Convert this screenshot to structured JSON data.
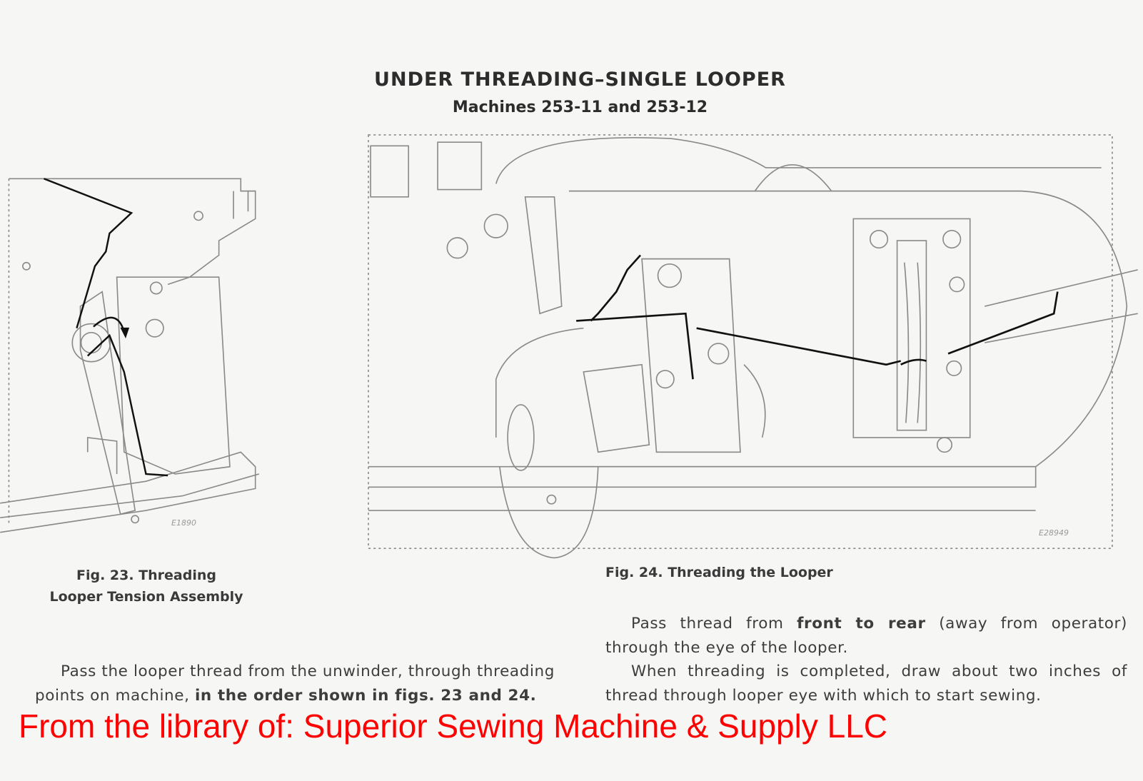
{
  "header": {
    "title": "UNDER THREADING–SINGLE LOOPER",
    "subtitle": "Machines 253-11 and 253-12"
  },
  "figures": [
    {
      "caption": [
        "Fig. 23. Threading",
        "Looper Tension Assembly"
      ],
      "code": "E1890"
    },
    {
      "caption": [
        "Fig. 24. Threading the Looper"
      ],
      "code": "E28949"
    }
  ],
  "instructions": {
    "left": [
      "Pass the looper thread from the unwinder, through threading points on machine, ",
      "in the order shown in figs. 23 and 24."
    ],
    "right_1": [
      "Pass thread from ",
      "front to rear",
      " (away from operator) through the eye of the looper."
    ],
    "right_2": "When threading is completed, draw about two inches of thread through looper eye with which to start sewing."
  },
  "watermark": "From the library of: Superior Sewing Machine & Supply LLC"
}
